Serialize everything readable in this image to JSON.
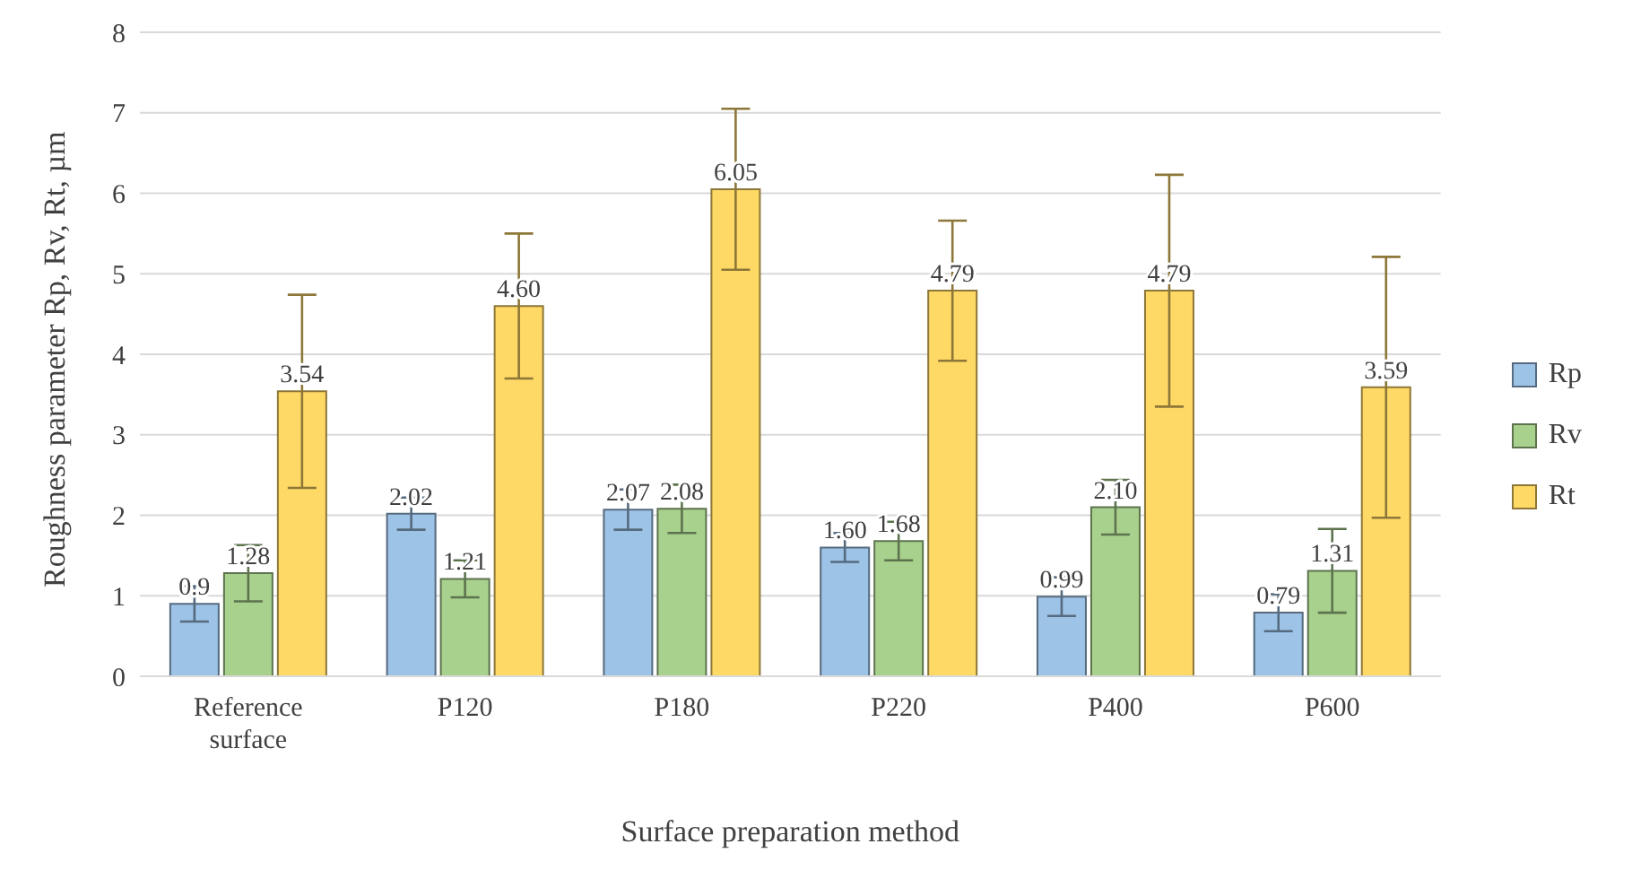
{
  "chart_data": {
    "type": "bar",
    "xlabel": "Surface preparation method",
    "ylabel": "Roughness parameter Rp, Rv, Rt, µm",
    "categories": [
      "Reference surface",
      "P120",
      "P180",
      "P220",
      "P400",
      "P600"
    ],
    "series": [
      {
        "name": "Rp",
        "color": "#9dc3e6",
        "values": [
          0.9,
          2.02,
          2.07,
          1.6,
          0.99,
          0.79
        ],
        "errors": [
          0.22,
          0.2,
          0.25,
          0.18,
          0.24,
          0.23
        ],
        "value_labels": [
          "0.9",
          "2.02",
          "2.07",
          "1.60",
          "0.99",
          "0.79"
        ]
      },
      {
        "name": "Rv",
        "color": "#a9d18e",
        "values": [
          1.28,
          1.21,
          2.08,
          1.68,
          2.1,
          1.31
        ],
        "errors": [
          0.35,
          0.23,
          0.3,
          0.24,
          0.34,
          0.52
        ],
        "value_labels": [
          "1.28",
          "1.21",
          "2.08",
          "1.68",
          "2.10",
          "1.31"
        ]
      },
      {
        "name": "Rt",
        "color": "#ffd966",
        "values": [
          3.54,
          4.6,
          6.05,
          4.79,
          4.79,
          3.59
        ],
        "errors": [
          1.2,
          0.9,
          1.0,
          0.87,
          1.44,
          1.62
        ],
        "value_labels": [
          "3.54",
          "4.60",
          "6.05",
          "4.79",
          "4.79",
          "3.59"
        ]
      }
    ],
    "ylim": [
      0,
      8
    ],
    "yticks": [
      0,
      1,
      2,
      3,
      4,
      5,
      6,
      7,
      8
    ],
    "grid": "y",
    "legend": "right"
  }
}
